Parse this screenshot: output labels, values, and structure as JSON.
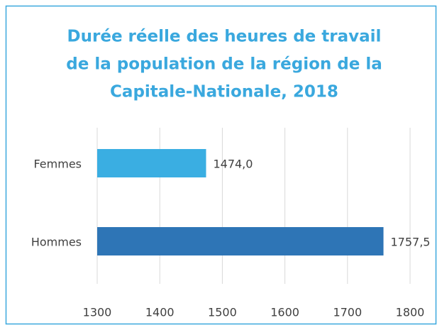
{
  "chart_data": {
    "type": "bar",
    "orientation": "horizontal",
    "title": [
      "Durée réelle des heures de travail",
      "de la population de la région de la",
      "Capitale-Nationale, 2018"
    ],
    "categories": [
      "Femmes",
      "Hommes"
    ],
    "values": [
      1474.0,
      1757.5
    ],
    "value_labels": [
      "1474,0",
      "1757,5"
    ],
    "colors": [
      "#3aaee2",
      "#2e75b6"
    ],
    "xlim": [
      1300,
      1800
    ],
    "xticks": [
      1300,
      1400,
      1500,
      1600,
      1700,
      1800
    ],
    "grid": true
  }
}
